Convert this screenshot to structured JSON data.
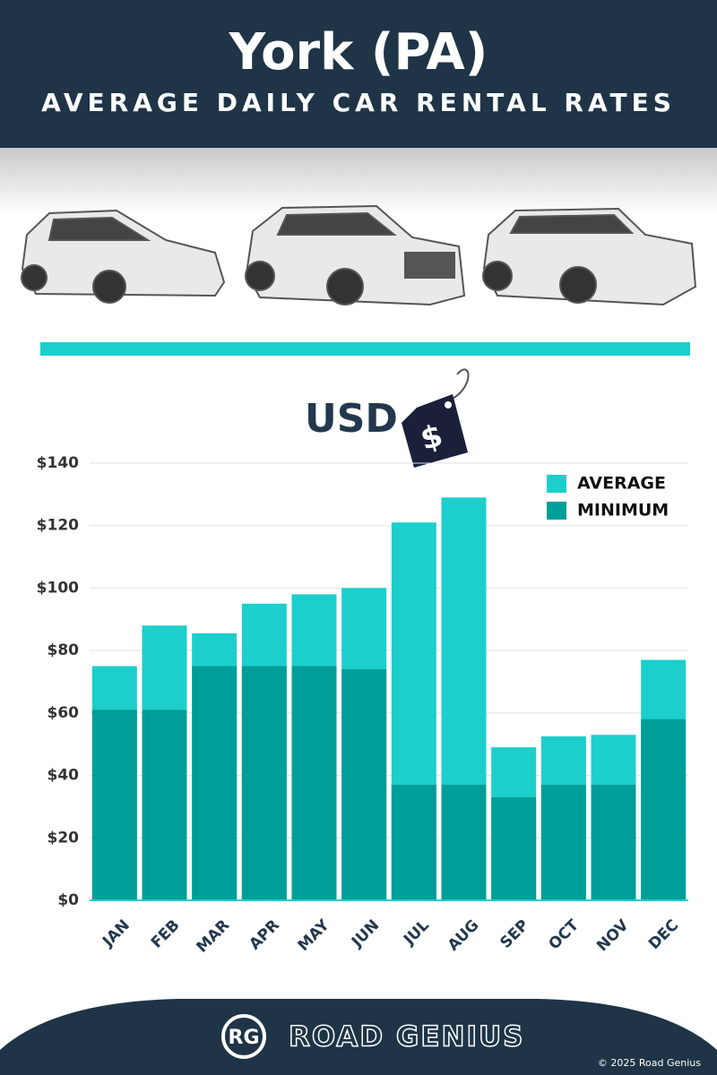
{
  "chart_data": {
    "type": "overlap-bar",
    "title": "York (PA)",
    "subtitle": "AVERAGE DAILY CAR RENTAL RATES",
    "currency_label": "USD",
    "tag_symbol": "$",
    "categories": [
      "JAN",
      "FEB",
      "MAR",
      "APR",
      "MAY",
      "JUN",
      "JUL",
      "AUG",
      "SEP",
      "OCT",
      "NOV",
      "DEC"
    ],
    "series": [
      {
        "name": "AVERAGE",
        "color": "#1ccfcc",
        "values": [
          75,
          88,
          85.5,
          95,
          98,
          100,
          121,
          129,
          49,
          52.5,
          53,
          77
        ]
      },
      {
        "name": "MINIMUM",
        "color": "#009e99",
        "values": [
          61,
          61,
          75,
          75,
          75,
          74,
          37,
          37,
          33,
          37,
          37,
          58
        ]
      }
    ],
    "ylim": [
      0,
      140
    ],
    "yticks": [
      {
        "value": 0,
        "label": "$0"
      },
      {
        "value": 20,
        "label": "$20"
      },
      {
        "value": 40,
        "label": "$40"
      },
      {
        "value": 60,
        "label": "$60"
      },
      {
        "value": 80,
        "label": "$80"
      },
      {
        "value": 100,
        "label": "$100"
      },
      {
        "value": 120,
        "label": "$120"
      },
      {
        "value": 140,
        "label": "$140"
      }
    ],
    "grid": true,
    "legend": "top-right"
  },
  "footer": {
    "logo_initials": "RG",
    "brand": "ROAD GENIUS",
    "copyright": "© 2025 Road Genius"
  }
}
